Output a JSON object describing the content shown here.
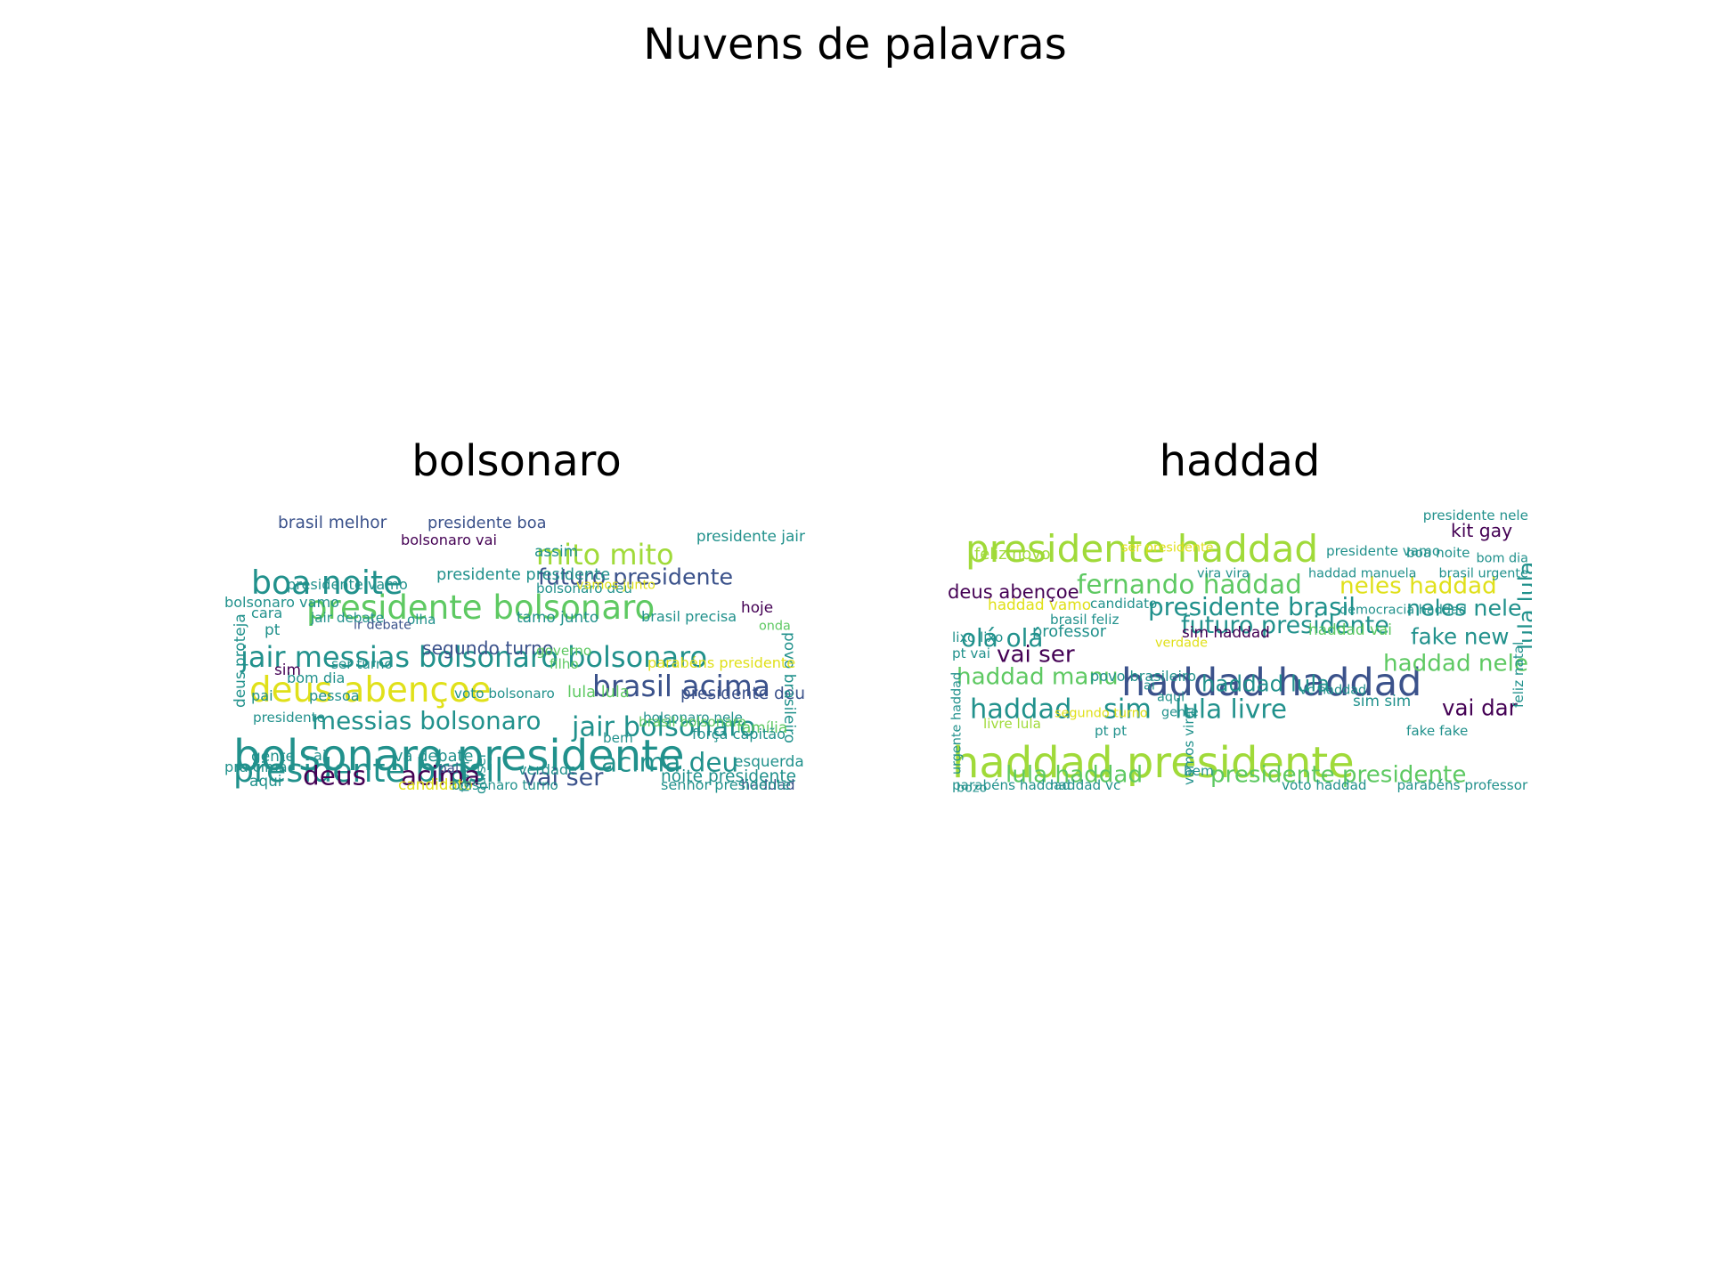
{
  "figure": {
    "title": "Nuvens de palavras"
  },
  "colors": {
    "dark_purple": "#440154",
    "indigo": "#3b528b",
    "teal": "#21918c",
    "green": "#5ec962",
    "lime": "#a0da39",
    "yellow": "#e0e01a"
  },
  "clouds": [
    {
      "title": "bolsonaro",
      "words": [
        {
          "text": "bolsonaro presidente",
          "weight": 1.0,
          "color": "teal"
        },
        {
          "text": "deus abençoe",
          "weight": 0.78,
          "color": "yellow"
        },
        {
          "text": "presidente bolsonaro",
          "weight": 0.74,
          "color": "green"
        },
        {
          "text": "presidente brasil",
          "weight": 0.72,
          "color": "teal"
        },
        {
          "text": "boa noite",
          "weight": 0.72,
          "color": "teal"
        },
        {
          "text": "jair messias",
          "weight": 0.62,
          "color": "teal"
        },
        {
          "text": "bolsonaro bolsonaro",
          "weight": 0.62,
          "color": "teal"
        },
        {
          "text": "brasil acima",
          "weight": 0.64,
          "color": "indigo"
        },
        {
          "text": "mito mito",
          "weight": 0.62,
          "color": "lime"
        },
        {
          "text": "jair bolsonaro",
          "weight": 0.58,
          "color": "teal"
        },
        {
          "text": "deus",
          "weight": 0.56,
          "color": "dark_purple"
        },
        {
          "text": "acima",
          "weight": 0.56,
          "color": "dark_purple"
        },
        {
          "text": "acima deu",
          "weight": 0.56,
          "color": "teal"
        },
        {
          "text": "messias bolsonaro",
          "weight": 0.52,
          "color": "teal"
        },
        {
          "text": "vai ser",
          "weight": 0.5,
          "color": "indigo"
        },
        {
          "text": "futuro presidente",
          "weight": 0.46,
          "color": "indigo"
        },
        {
          "text": "segundo turno",
          "weight": 0.34,
          "color": "indigo"
        },
        {
          "text": "presidente deu",
          "weight": 0.3,
          "color": "indigo"
        },
        {
          "text": "noite presidente",
          "weight": 0.3,
          "color": "teal"
        },
        {
          "text": "brasil melhor",
          "weight": 0.3,
          "color": "indigo"
        },
        {
          "text": "presidente boa",
          "weight": 0.28,
          "color": "indigo"
        },
        {
          "text": "presidente presidente",
          "weight": 0.28,
          "color": "teal"
        },
        {
          "text": "presidente jair",
          "weight": 0.26,
          "color": "teal"
        },
        {
          "text": "va debate",
          "weight": 0.28,
          "color": "teal"
        },
        {
          "text": "lula lula",
          "weight": 0.28,
          "color": "green"
        },
        {
          "text": "povo brasileiro",
          "weight": 0.26,
          "color": "teal"
        },
        {
          "text": "deus proteja",
          "weight": 0.26,
          "color": "teal"
        },
        {
          "text": "tamo junto",
          "weight": 0.26,
          "color": "teal"
        },
        {
          "text": "brasil precisa",
          "weight": 0.24,
          "color": "teal"
        },
        {
          "text": "esquerda",
          "weight": 0.26,
          "color": "teal"
        },
        {
          "text": "família",
          "weight": 0.26,
          "color": "green"
        },
        {
          "text": "gente",
          "weight": 0.26,
          "color": "teal"
        },
        {
          "text": "hoje",
          "weight": 0.26,
          "color": "dark_purple"
        },
        {
          "text": "assim",
          "weight": 0.26,
          "color": "teal"
        },
        {
          "text": "haddad",
          "weight": 0.24,
          "color": "indigo"
        },
        {
          "text": "senhor presidente",
          "weight": 0.24,
          "color": "teal"
        },
        {
          "text": "pra cima",
          "weight": 0.24,
          "color": "teal"
        },
        {
          "text": "aqui",
          "weight": 0.26,
          "color": "teal"
        },
        {
          "text": "candidato",
          "weight": 0.26,
          "color": "yellow"
        },
        {
          "text": "verdade",
          "weight": 0.24,
          "color": "teal"
        },
        {
          "text": "força capitão",
          "weight": 0.24,
          "color": "teal"
        },
        {
          "text": "parabéns presidente",
          "weight": 0.24,
          "color": "yellow"
        },
        {
          "text": "bom dia",
          "weight": 0.24,
          "color": "teal"
        },
        {
          "text": "pai",
          "weight": 0.24,
          "color": "teal"
        },
        {
          "text": "pessoa",
          "weight": 0.24,
          "color": "teal"
        },
        {
          "text": "sim",
          "weight": 0.26,
          "color": "dark_purple"
        },
        {
          "text": "pt",
          "weight": 0.26,
          "color": "teal"
        },
        {
          "text": "cara",
          "weight": 0.24,
          "color": "teal"
        },
        {
          "text": "bolsonaro vamo",
          "weight": 0.24,
          "color": "teal"
        },
        {
          "text": "presidente vamo",
          "weight": 0.24,
          "color": "teal"
        },
        {
          "text": "bolsonaro vai",
          "weight": 0.24,
          "color": "dark_purple"
        },
        {
          "text": "bolsonaro deu",
          "weight": 0.22,
          "color": "teal"
        },
        {
          "text": "jair debate",
          "weight": 0.22,
          "color": "teal"
        },
        {
          "text": "ser turno",
          "weight": 0.22,
          "color": "teal"
        },
        {
          "text": "governo",
          "weight": 0.22,
          "color": "green"
        },
        {
          "text": "filho",
          "weight": 0.22,
          "color": "green"
        },
        {
          "text": "olha",
          "weight": 0.22,
          "color": "teal"
        },
        {
          "text": "voto bolsonaro",
          "weight": 0.22,
          "color": "teal"
        },
        {
          "text": "bolsonaro turno",
          "weight": 0.22,
          "color": "teal"
        },
        {
          "text": "bolsonaro nele",
          "weight": 0.22,
          "color": "teal"
        },
        {
          "text": "brasil bolsonaro",
          "weight": 0.22,
          "color": "green"
        },
        {
          "text": "ai",
          "weight": 0.24,
          "color": "teal"
        },
        {
          "text": "bem",
          "weight": 0.22,
          "color": "teal"
        },
        {
          "text": "pai",
          "weight": 0.22,
          "color": "indigo"
        },
        {
          "text": "presidente",
          "weight": 0.22,
          "color": "teal"
        },
        {
          "text": "quiser",
          "weight": 0.22,
          "color": "teal"
        },
        {
          "text": "favor",
          "weight": 0.2,
          "color": "teal"
        },
        {
          "text": "onda",
          "weight": 0.2,
          "color": "green"
        },
        {
          "text": "vamos junto",
          "weight": 0.2,
          "color": "yellow"
        },
        {
          "text": "ir debate",
          "weight": 0.2,
          "color": "indigo"
        }
      ]
    },
    {
      "title": "haddad",
      "words": [
        {
          "text": "haddad presidente",
          "weight": 1.0,
          "color": "lime"
        },
        {
          "text": "presidente haddad",
          "weight": 0.86,
          "color": "lime"
        },
        {
          "text": "haddad haddad",
          "weight": 0.88,
          "color": "indigo"
        },
        {
          "text": "fernando haddad",
          "weight": 0.56,
          "color": "green"
        },
        {
          "text": "presidente brasil",
          "weight": 0.52,
          "color": "teal"
        },
        {
          "text": "futuro presidente",
          "weight": 0.5,
          "color": "teal"
        },
        {
          "text": "lula livre",
          "weight": 0.56,
          "color": "teal"
        },
        {
          "text": "haddad",
          "weight": 0.58,
          "color": "teal"
        },
        {
          "text": "sim",
          "weight": 0.58,
          "color": "teal"
        },
        {
          "text": "haddad manu",
          "weight": 0.48,
          "color": "green"
        },
        {
          "text": "haddad nele",
          "weight": 0.48,
          "color": "green"
        },
        {
          "text": "olá olá",
          "weight": 0.52,
          "color": "teal"
        },
        {
          "text": "vai ser",
          "weight": 0.48,
          "color": "dark_purple"
        },
        {
          "text": "neles haddad",
          "weight": 0.48,
          "color": "yellow"
        },
        {
          "text": "neles nele",
          "weight": 0.46,
          "color": "teal"
        },
        {
          "text": "lula lula",
          "weight": 0.46,
          "color": "teal"
        },
        {
          "text": "fake new",
          "weight": 0.44,
          "color": "teal"
        },
        {
          "text": "vai dar",
          "weight": 0.44,
          "color": "dark_purple"
        },
        {
          "text": "lula haddad",
          "weight": 0.48,
          "color": "green"
        },
        {
          "text": "presidente presidente",
          "weight": 0.48,
          "color": "green"
        },
        {
          "text": "haddad lula",
          "weight": 0.44,
          "color": "teal"
        },
        {
          "text": "deus abençoe",
          "weight": 0.36,
          "color": "dark_purple"
        },
        {
          "text": "kit gay",
          "weight": 0.34,
          "color": "dark_purple"
        },
        {
          "text": "feliz novo",
          "weight": 0.28,
          "color": "lime"
        },
        {
          "text": "haddad vamo",
          "weight": 0.26,
          "color": "yellow"
        },
        {
          "text": "professor",
          "weight": 0.28,
          "color": "teal"
        },
        {
          "text": "haddad vai",
          "weight": 0.26,
          "color": "green"
        },
        {
          "text": "sim haddad",
          "weight": 0.26,
          "color": "dark_purple"
        },
        {
          "text": "sim sim",
          "weight": 0.26,
          "color": "teal"
        },
        {
          "text": "povo brasileiro",
          "weight": 0.24,
          "color": "teal"
        },
        {
          "text": "brasil feliz",
          "weight": 0.22,
          "color": "teal"
        },
        {
          "text": "candidato",
          "weight": 0.22,
          "color": "teal"
        },
        {
          "text": "boa noite",
          "weight": 0.22,
          "color": "teal"
        },
        {
          "text": "presidente vamo",
          "weight": 0.22,
          "color": "teal"
        },
        {
          "text": "presidente nele",
          "weight": 0.22,
          "color": "teal"
        },
        {
          "text": "democracia haddad",
          "weight": 0.2,
          "color": "teal"
        },
        {
          "text": "lixo lixo",
          "weight": 0.22,
          "color": "teal"
        },
        {
          "text": "pt vai",
          "weight": 0.22,
          "color": "teal"
        },
        {
          "text": "pt pt",
          "weight": 0.22,
          "color": "teal"
        },
        {
          "text": "livre lula",
          "weight": 0.22,
          "color": "lime"
        },
        {
          "text": "vamos virar",
          "weight": 0.22,
          "color": "teal"
        },
        {
          "text": "parabéns haddad",
          "weight": 0.22,
          "color": "teal"
        },
        {
          "text": "haddad vc",
          "weight": 0.22,
          "color": "teal"
        },
        {
          "text": "voto haddad",
          "weight": 0.22,
          "color": "teal"
        },
        {
          "text": "parabéns professor",
          "weight": 0.22,
          "color": "teal"
        },
        {
          "text": "bem",
          "weight": 0.22,
          "color": "teal"
        },
        {
          "text": "fake fake",
          "weight": 0.22,
          "color": "teal"
        },
        {
          "text": "feliz natal",
          "weight": 0.22,
          "color": "teal"
        },
        {
          "text": "verdade",
          "weight": 0.2,
          "color": "yellow"
        },
        {
          "text": "ser presidente",
          "weight": 0.2,
          "color": "yellow"
        },
        {
          "text": "vira vira",
          "weight": 0.2,
          "color": "teal"
        },
        {
          "text": "vc haddad",
          "weight": 0.2,
          "color": "teal"
        },
        {
          "text": "bom dia",
          "weight": 0.2,
          "color": "teal"
        },
        {
          "text": "brasil urgente",
          "weight": 0.2,
          "color": "teal"
        },
        {
          "text": "aqui",
          "weight": 0.2,
          "color": "teal"
        },
        {
          "text": "ai",
          "weight": 0.2,
          "color": "teal"
        },
        {
          "text": "urgente haddad",
          "weight": 0.2,
          "color": "teal"
        },
        {
          "text": "gente",
          "weight": 0.2,
          "color": "teal"
        },
        {
          "text": "haddad manuela",
          "weight": 0.2,
          "color": "teal"
        },
        {
          "text": "segundo turno",
          "weight": 0.2,
          "color": "yellow"
        },
        {
          "text": "bozo",
          "weight": 0.2,
          "color": "teal"
        }
      ]
    }
  ]
}
